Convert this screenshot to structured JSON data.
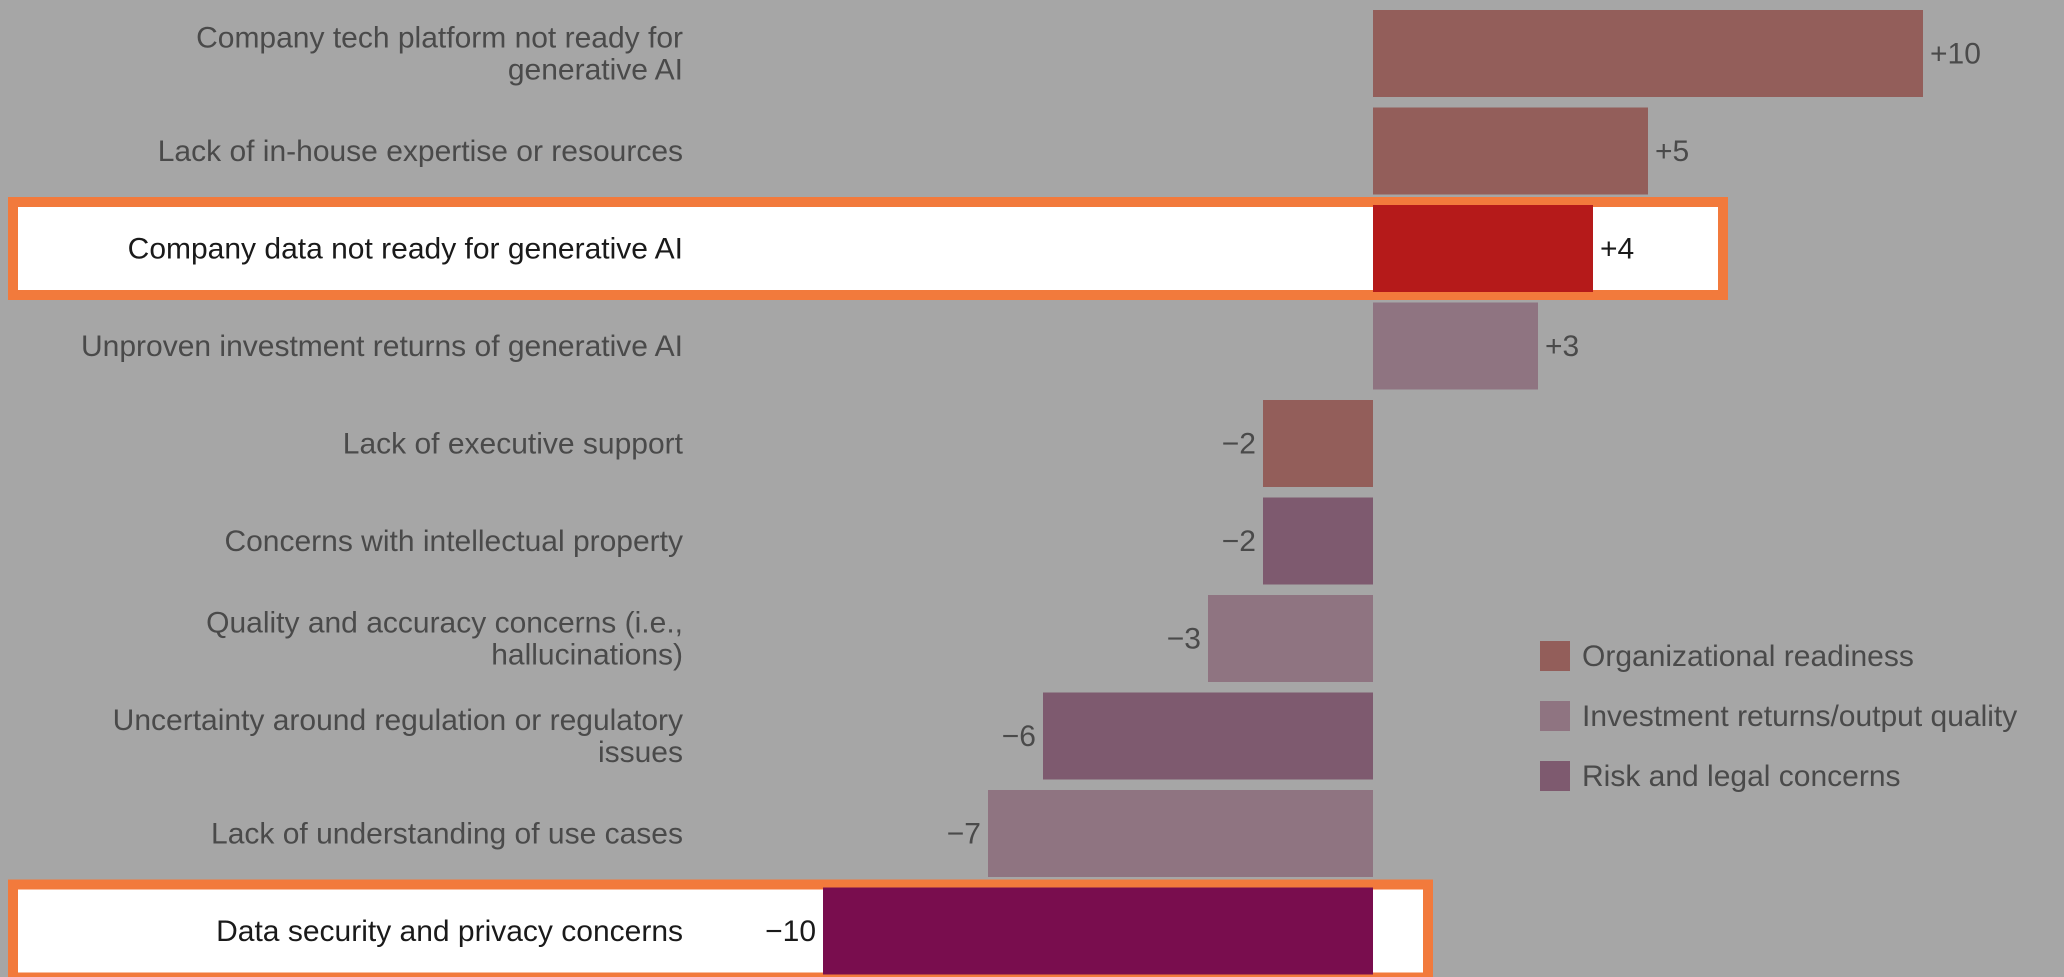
{
  "chart_data": {
    "type": "bar",
    "orientation": "horizontal",
    "categories": [
      "Company tech platform not ready for generative AI",
      "Lack of in-house expertise or resources",
      "Company data not ready for generative AI",
      "Unproven investment returns of generative AI",
      "Lack of executive support",
      "Concerns with intellectual property",
      "Quality and accuracy concerns (i.e., hallucinations)",
      "Uncertainty around regulation or regulatory issues",
      "Lack of understanding of use cases",
      "Data security and privacy concerns"
    ],
    "values": [
      10,
      5,
      4,
      3,
      -2,
      -2,
      -3,
      -6,
      -7,
      -10
    ],
    "value_labels": [
      "+10",
      "+5",
      "+4",
      "+3",
      "−2",
      "−2",
      "−3",
      "−6",
      "−7",
      "−10"
    ],
    "groups": [
      "Organizational readiness",
      "Organizational readiness",
      "Organizational readiness",
      "Investment returns/output quality",
      "Organizational readiness",
      "Risk and legal concerns",
      "Investment returns/output quality",
      "Risk and legal concerns",
      "Investment returns/output quality",
      "Risk and legal concerns"
    ],
    "highlighted": [
      false,
      false,
      true,
      false,
      false,
      false,
      false,
      false,
      false,
      true
    ],
    "xlim": [
      -10,
      10
    ],
    "legend": {
      "position": "right",
      "entries": [
        {
          "name": "Organizational readiness",
          "color": "#935e5a"
        },
        {
          "name": "Investment returns/output quality",
          "color": "#8f7481"
        },
        {
          "name": "Risk and legal concerns",
          "color": "#7e5a6f"
        }
      ]
    },
    "highlight_colors": {
      "Company data not ready for generative AI": "#b51a1a",
      "Data security and privacy concerns": "#790d4e"
    },
    "highlight_border_color": "#f27a3c",
    "grid": false
  }
}
